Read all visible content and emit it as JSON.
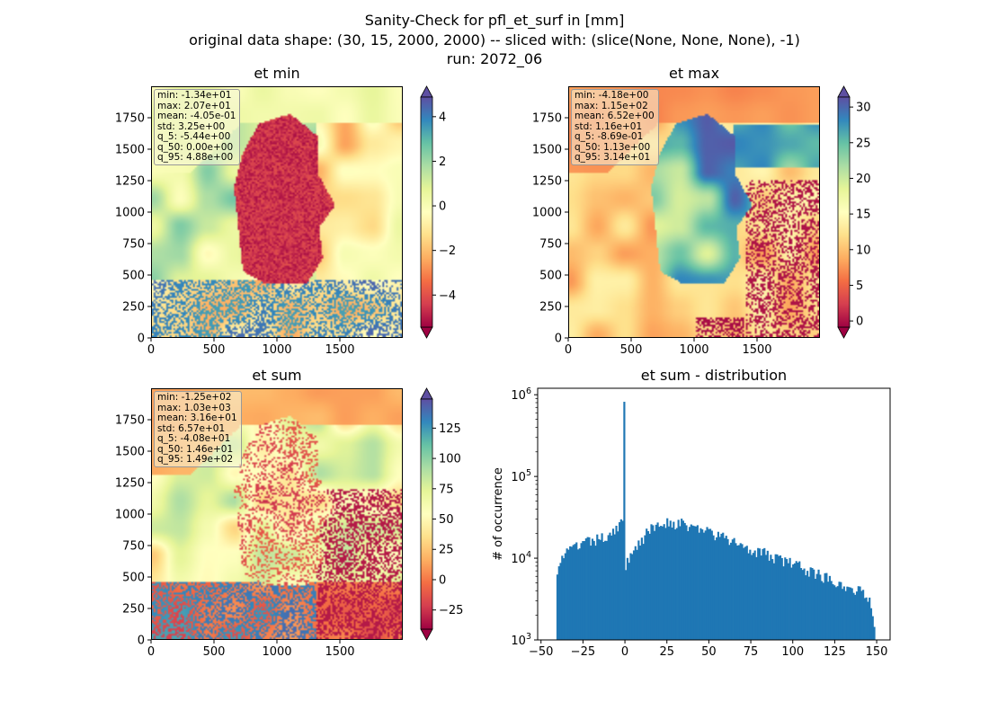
{
  "suptitle": {
    "line1": "Sanity-Check for pfl_et_surf in [mm]",
    "line2": "original data shape: (30, 15, 2000, 2000) -- sliced with: (slice(None, None, None), -1)",
    "line3": "run: 2072_06"
  },
  "colormap": "Spectral",
  "chart_data": [
    {
      "type": "heatmap",
      "title": "et min",
      "x_ticks": [
        "0",
        "500",
        "1000",
        "1500"
      ],
      "y_ticks": [
        "0",
        "250",
        "500",
        "750",
        "1000",
        "1250",
        "1500",
        "1750"
      ],
      "xlim": [
        0,
        2000
      ],
      "ylim": [
        0,
        2000
      ],
      "stats": [
        "min: -1.34e+01",
        "max: 2.07e+01",
        "mean: -4.05e-01",
        "std: 3.25e+00",
        "q_5: -5.44e+00",
        "q_50: 0.00e+00",
        "q_95: 4.88e+00"
      ],
      "colorbar": {
        "range": [
          -5.44,
          4.88
        ],
        "ticks": [
          -4,
          -2,
          0,
          2,
          4
        ],
        "tick_labels": [
          "−4",
          "−2",
          "0",
          "2",
          "4"
        ],
        "extend": "both"
      }
    },
    {
      "type": "heatmap",
      "title": "et max",
      "x_ticks": [
        "0",
        "500",
        "1000",
        "1500"
      ],
      "y_ticks": [
        "0",
        "250",
        "500",
        "750",
        "1000",
        "1250",
        "1500",
        "1750"
      ],
      "xlim": [
        0,
        2000
      ],
      "ylim": [
        0,
        2000
      ],
      "stats": [
        "min: -4.18e+00",
        "max: 1.15e+02",
        "mean: 6.52e+00",
        "std: 1.16e+01",
        "q_5: -8.69e-01",
        "q_50: 1.13e+00",
        "q_95: 3.14e+01"
      ],
      "colorbar": {
        "range": [
          -0.869,
          31.4
        ],
        "ticks": [
          0,
          5,
          10,
          15,
          20,
          25,
          30
        ],
        "tick_labels": [
          "0",
          "5",
          "10",
          "15",
          "20",
          "25",
          "30"
        ],
        "extend": "both"
      }
    },
    {
      "type": "heatmap",
      "title": "et sum",
      "x_ticks": [
        "0",
        "500",
        "1000",
        "1500"
      ],
      "y_ticks": [
        "0",
        "250",
        "500",
        "750",
        "1000",
        "1250",
        "1500",
        "1750"
      ],
      "xlim": [
        0,
        2000
      ],
      "ylim": [
        0,
        2000
      ],
      "stats": [
        "min: -1.25e+02",
        "max: 1.03e+03",
        "mean: 3.16e+01",
        "std: 6.57e+01",
        "q_5: -4.08e+01",
        "q_50: 1.46e+01",
        "q_95: 1.49e+02"
      ],
      "colorbar": {
        "range": [
          -40.8,
          149
        ],
        "ticks": [
          -25,
          0,
          25,
          50,
          75,
          100,
          125
        ],
        "tick_labels": [
          "−25",
          "0",
          "25",
          "50",
          "75",
          "100",
          "125"
        ],
        "extend": "both"
      }
    },
    {
      "type": "bar",
      "title": "et sum - distribution",
      "ylabel": "# of occurrence",
      "xlabel": "",
      "yscale": "log",
      "xlim": [
        -52,
        158
      ],
      "ylim": [
        1000,
        1200000
      ],
      "x_ticks": [
        -50,
        -25,
        0,
        25,
        50,
        75,
        100,
        125,
        150
      ],
      "x_tick_labels": [
        "−50",
        "−25",
        "0",
        "25",
        "50",
        "75",
        "100",
        "125",
        "150"
      ],
      "y_ticks": [
        1000,
        10000,
        100000,
        1000000
      ],
      "y_tick_labels": [
        [
          "10",
          "3"
        ],
        [
          "10",
          "4"
        ],
        [
          "10",
          "5"
        ],
        [
          "10",
          "6"
        ]
      ],
      "bar_color": "#1f77b4",
      "bin_range": [
        -40.8,
        149
      ],
      "profile": [
        [
          -40.8,
          7000
        ],
        [
          -39,
          9500
        ],
        [
          -35,
          11500
        ],
        [
          -30,
          13500
        ],
        [
          -25,
          15000
        ],
        [
          -20,
          16000
        ],
        [
          -15,
          17000
        ],
        [
          -10,
          19500
        ],
        [
          -5,
          24000
        ],
        [
          -2,
          28000
        ],
        [
          -1.2,
          25000
        ],
        [
          0.5,
          7000
        ],
        [
          2,
          10000
        ],
        [
          5,
          13000
        ],
        [
          10,
          17000
        ],
        [
          15,
          22000
        ],
        [
          20,
          26500
        ],
        [
          25,
          28000
        ],
        [
          30,
          27000
        ],
        [
          40,
          24500
        ],
        [
          50,
          21000
        ],
        [
          60,
          17000
        ],
        [
          70,
          14500
        ],
        [
          80,
          12000
        ],
        [
          90,
          10000
        ],
        [
          100,
          8500
        ],
        [
          110,
          7000
        ],
        [
          120,
          5800
        ],
        [
          130,
          4800
        ],
        [
          140,
          3900
        ],
        [
          146,
          3300
        ],
        [
          149,
          1500
        ]
      ],
      "spike": {
        "x": -0.4,
        "value": 820000
      }
    }
  ]
}
